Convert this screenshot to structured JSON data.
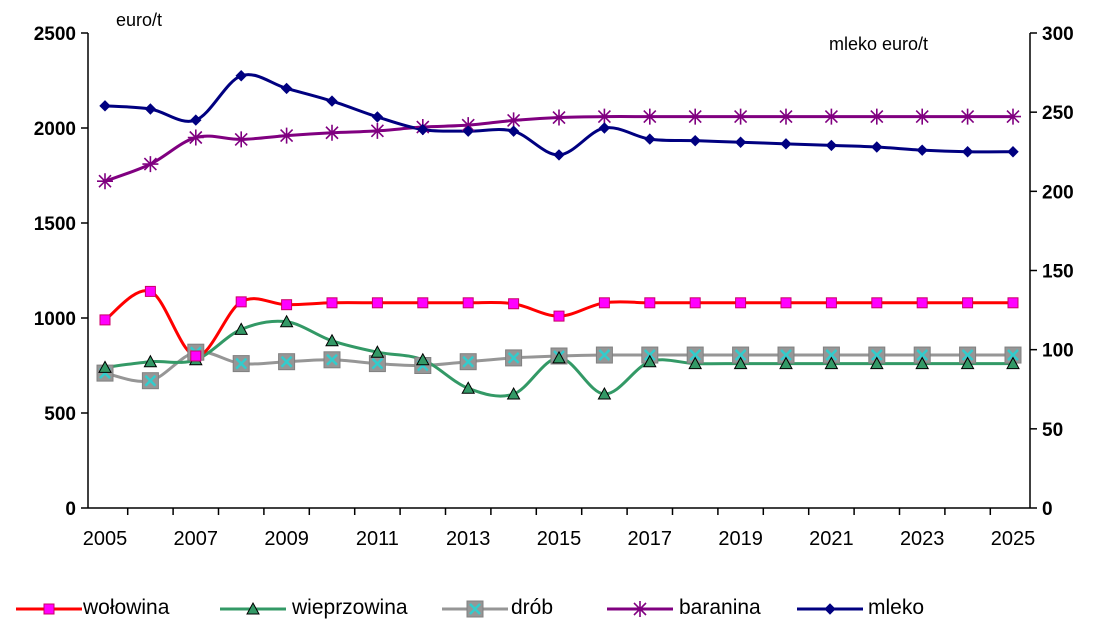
{
  "chart_data": {
    "type": "line",
    "left_axis": {
      "label": "euro/t",
      "ylim": [
        0,
        2500
      ],
      "ticks": [
        0,
        500,
        1000,
        1500,
        2000,
        2500
      ]
    },
    "right_axis": {
      "label": "mleko euro/t",
      "ylim": [
        0,
        300
      ],
      "ticks": [
        0,
        50,
        100,
        150,
        200,
        250,
        300
      ]
    },
    "x": [
      2005,
      2006,
      2007,
      2008,
      2009,
      2010,
      2011,
      2012,
      2013,
      2014,
      2015,
      2016,
      2017,
      2018,
      2019,
      2020,
      2021,
      2022,
      2023,
      2024,
      2025
    ],
    "x_tick_labels": [
      "2005",
      "2007",
      "2009",
      "2011",
      "2013",
      "2015",
      "2017",
      "2019",
      "2021",
      "2023",
      "2025"
    ],
    "grid": false,
    "legend_position": "bottom",
    "series": [
      {
        "name": "wołowina",
        "axis": "left",
        "color": "#FF0000",
        "marker": "square",
        "marker_color": "#FF00FF",
        "values": [
          990,
          1140,
          800,
          1085,
          1070,
          1080,
          1080,
          1080,
          1080,
          1075,
          1010,
          1080,
          1080,
          1080,
          1080,
          1080,
          1080,
          1080,
          1080,
          1080,
          1080
        ]
      },
      {
        "name": "wieprzowina",
        "axis": "left",
        "color": "#339966",
        "marker": "triangle",
        "marker_color": "#339966",
        "values": [
          740,
          770,
          780,
          940,
          980,
          880,
          820,
          780,
          630,
          600,
          790,
          600,
          770,
          760,
          760,
          760,
          760,
          760,
          760,
          760,
          760
        ]
      },
      {
        "name": "drób",
        "axis": "left",
        "color": "#969696",
        "marker": "x-square",
        "marker_color": "#33CCCC",
        "values": [
          710,
          670,
          820,
          760,
          770,
          780,
          760,
          750,
          770,
          790,
          800,
          805,
          805,
          805,
          805,
          805,
          805,
          805,
          805,
          805,
          805
        ]
      },
      {
        "name": "baranina",
        "axis": "left",
        "color": "#800080",
        "marker": "asterisk",
        "marker_color": "#800080",
        "values": [
          1720,
          1810,
          1950,
          1940,
          1960,
          1975,
          1985,
          2005,
          2015,
          2040,
          2055,
          2060,
          2060,
          2060,
          2060,
          2060,
          2060,
          2060,
          2060,
          2060,
          2060
        ]
      },
      {
        "name": "mleko",
        "axis": "right",
        "color": "#000080",
        "marker": "diamond",
        "marker_color": "#000080",
        "values": [
          254,
          252,
          245,
          273,
          265,
          257,
          247,
          239,
          238,
          238,
          223,
          240,
          233,
          232,
          231,
          230,
          229,
          228,
          226,
          225,
          225
        ]
      }
    ]
  }
}
